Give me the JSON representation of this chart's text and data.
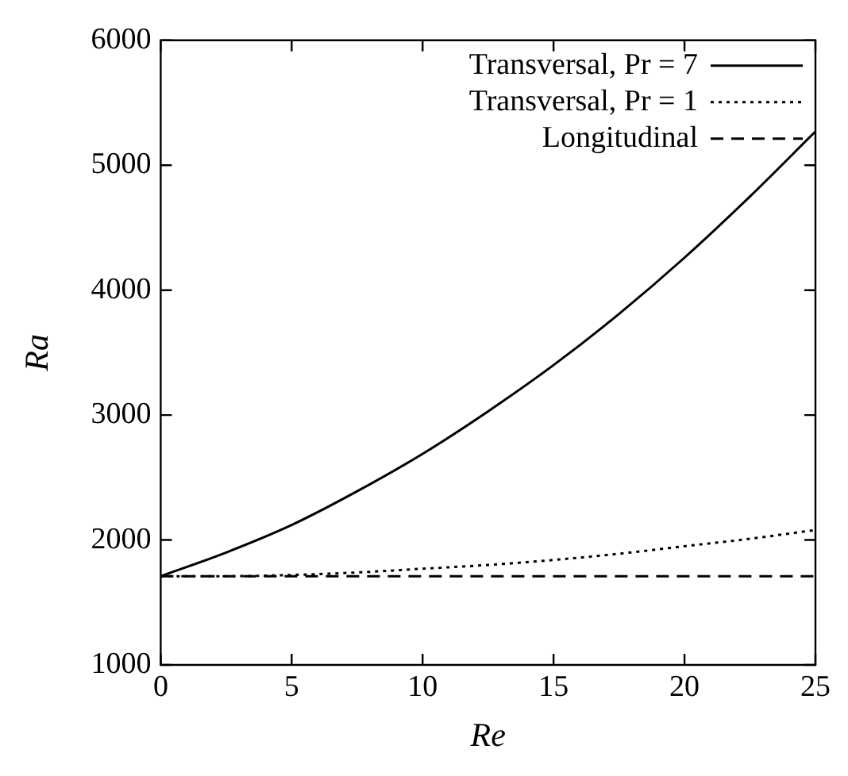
{
  "chart_data": {
    "type": "line",
    "xlabel": "Re",
    "ylabel": "Ra",
    "x": [
      0,
      2.5,
      5,
      7.5,
      10,
      12.5,
      15,
      17.5,
      20,
      22.5,
      25
    ],
    "series": [
      {
        "name": "Transversal, Pr = 7",
        "color": "#000000",
        "line_style": "solid",
        "values": [
          1710,
          1900,
          2120,
          2390,
          2690,
          3030,
          3400,
          3810,
          4260,
          4750,
          5270
        ]
      },
      {
        "name": "Transversal, Pr = 1",
        "color": "#000000",
        "line_style": "dotted",
        "values": [
          1710,
          1710,
          1720,
          1740,
          1770,
          1800,
          1840,
          1890,
          1950,
          2010,
          2080
        ]
      },
      {
        "name": "Longitudinal",
        "color": "#000000",
        "line_style": "dashed",
        "values": [
          1710,
          1710,
          1710,
          1710,
          1710,
          1710,
          1710,
          1710,
          1710,
          1710,
          1710
        ]
      }
    ],
    "xlim": [
      0,
      25
    ],
    "xticks": [
      0,
      5,
      10,
      15,
      20,
      25
    ],
    "ylim": [
      1000,
      6000
    ],
    "yticks": [
      1000,
      2000,
      3000,
      4000,
      5000,
      6000
    ],
    "grid": false,
    "legend": "top right",
    "marker": "none"
  }
}
